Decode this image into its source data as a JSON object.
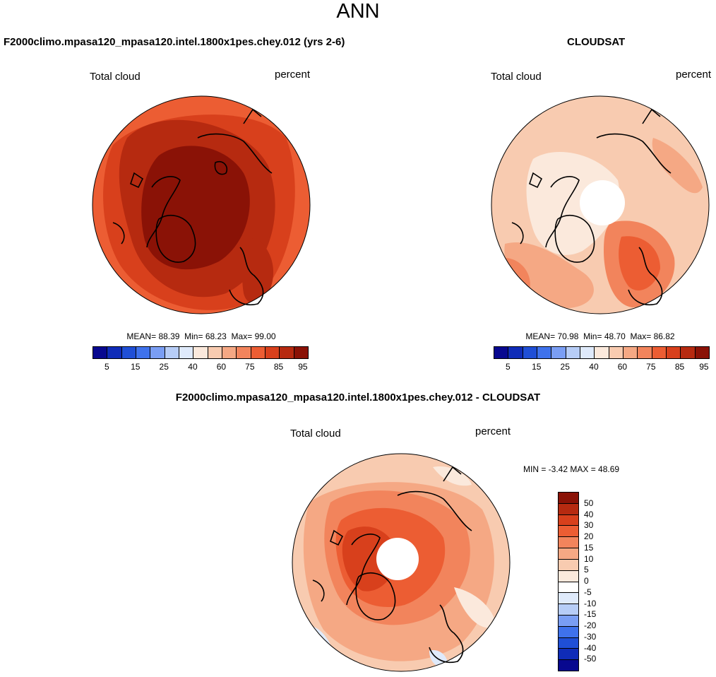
{
  "main_title": "ANN",
  "panels": [
    {
      "title": "F2000climo.mpasa120_mpasa120.intel.1800x1pes.chey.012 (yrs 2-6)",
      "left_label": "Total cloud",
      "right_label": "percent",
      "mean_label": "MEAN=",
      "mean": "88.39",
      "min_label": "Min=",
      "min": "68.23",
      "max_label": "Max=",
      "max": "99.00"
    },
    {
      "title": "CLOUDSAT",
      "left_label": "Total cloud",
      "right_label": "percent",
      "mean_label": "MEAN=",
      "mean": "70.98",
      "min_label": "Min=",
      "min": "48.70",
      "max_label": "Max=",
      "max": "86.82"
    }
  ],
  "diff_panel": {
    "title": "F2000climo.mpasa120_mpasa120.intel.1800x1pes.chey.012 - CLOUDSAT",
    "left_label": "Total cloud",
    "right_label": "percent",
    "minmax_text": "MIN = -3.42 MAX = 48.69"
  },
  "abs_colorbar": {
    "colors": [
      "#08088f",
      "#0f2cb8",
      "#1f4fd6",
      "#3f72ec",
      "#7a9ef4",
      "#b7cdf7",
      "#dfeafb",
      "#fbe9dc",
      "#f8cbb0",
      "#f5a884",
      "#f2845c",
      "#ec5d33",
      "#d8401c",
      "#b62a10",
      "#8a1206"
    ],
    "ticks": [
      "5",
      "15",
      "25",
      "40",
      "60",
      "75",
      "85",
      "95"
    ]
  },
  "diff_colorbar": {
    "colors": [
      "#8a1206",
      "#b62a10",
      "#d8401c",
      "#ec5d33",
      "#f2845c",
      "#f5a884",
      "#f8cbb0",
      "#fbe9dc",
      "#ffffff",
      "#dfeafb",
      "#b7cdf7",
      "#7a9ef4",
      "#3f72ec",
      "#1f4fd6",
      "#0f2cb8",
      "#08088f"
    ],
    "ticks": [
      "50",
      "40",
      "30",
      "20",
      "15",
      "10",
      "5",
      "0",
      "-5",
      "-10",
      "-15",
      "-20",
      "-30",
      "-40",
      "-50"
    ]
  },
  "map_colors": {
    "p1": [
      "#ec5d33",
      "#d8401c",
      "#b62a10",
      "#8a1206"
    ],
    "p2": [
      "#fbe9dc",
      "#f8cbb0",
      "#f5a884",
      "#f2845c",
      "#ec5d33"
    ],
    "p3": [
      "#fbe9dc",
      "#f8cbb0",
      "#f5a884",
      "#f2845c",
      "#ec5d33",
      "#d8401c"
    ],
    "blue_patch": "#dfeafb"
  }
}
